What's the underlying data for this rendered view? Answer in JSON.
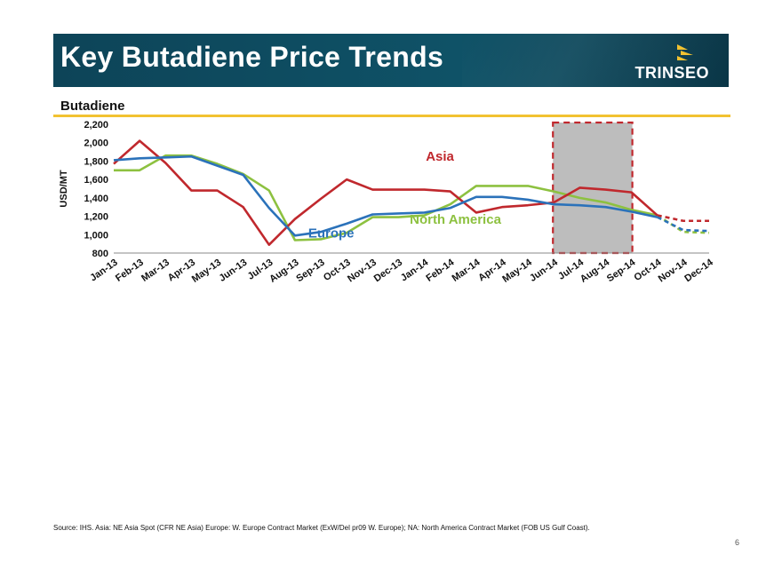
{
  "header": {
    "title": "Key Butadiene Price Trends",
    "logo_text": "TRINSEO",
    "logo_mark": "trinseo-arrows-icon"
  },
  "subtitle": "Butadiene",
  "footer": {
    "source": "Source: IHS.  Asia: NE Asia Spot (CFR NE Asia) Europe: W. Europe Contract Market (ExW/Del pr09 W. Europe); NA: North America Contract Market (FOB US Gulf Coast).",
    "page": "6"
  },
  "colors": {
    "header": "#0f4c61",
    "accent_rule": "#f2c231",
    "asia": "#c0282d",
    "europe": "#2b72ba",
    "north_america": "#8dc140",
    "highlight": "#bdbdbd",
    "highlight_border": "#c0282d"
  },
  "chart_data": {
    "type": "line",
    "title": "",
    "xlabel": "",
    "ylabel": "USD/MT",
    "ylim": [
      800,
      2200
    ],
    "yticks": [
      800,
      1000,
      1200,
      1400,
      1600,
      1800,
      2000,
      2200
    ],
    "ytick_labels": [
      "800",
      "1,000",
      "1,200",
      "1,400",
      "1,600",
      "1,800",
      "2,000",
      "2,200"
    ],
    "grid": false,
    "categories": [
      "Jan-13",
      "Feb-13",
      "Mar-13",
      "Apr-13",
      "May-13",
      "Jun-13",
      "Jul-13",
      "Aug-13",
      "Sep-13",
      "Oct-13",
      "Nov-13",
      "Dec-13",
      "Jan-14",
      "Feb-14",
      "Mar-14",
      "Apr-14",
      "May-14",
      "Jun-14",
      "Jul-14",
      "Aug-14",
      "Sep-14",
      "Oct-14",
      "Nov-14",
      "Dec-14"
    ],
    "series": [
      {
        "name": "Asia",
        "color": "#c0282d",
        "values": [
          1770,
          2020,
          1780,
          1480,
          1480,
          1300,
          890,
          1170,
          1390,
          1600,
          1490,
          1490,
          1490,
          1470,
          1240,
          1300,
          1320,
          1350,
          1510,
          1490,
          1460,
          1210,
          1150,
          1150
        ]
      },
      {
        "name": "Europe",
        "color": "#2b72ba",
        "values": [
          1810,
          1830,
          1840,
          1850,
          1750,
          1650,
          1290,
          990,
          1030,
          1120,
          1220,
          1230,
          1240,
          1290,
          1410,
          1410,
          1380,
          1330,
          1320,
          1300,
          1250,
          1190,
          1050,
          1040
        ]
      },
      {
        "name": "North America",
        "color": "#8dc140",
        "values": [
          1700,
          1700,
          1860,
          1860,
          1770,
          1660,
          1480,
          940,
          950,
          1020,
          1190,
          1190,
          1210,
          1330,
          1530,
          1530,
          1530,
          1470,
          1400,
          1350,
          1270,
          1210,
          1030,
          1020
        ]
      }
    ],
    "forecast_start": "Oct-14",
    "highlight": {
      "from": "Jun-14",
      "to": "Sep-14"
    }
  }
}
